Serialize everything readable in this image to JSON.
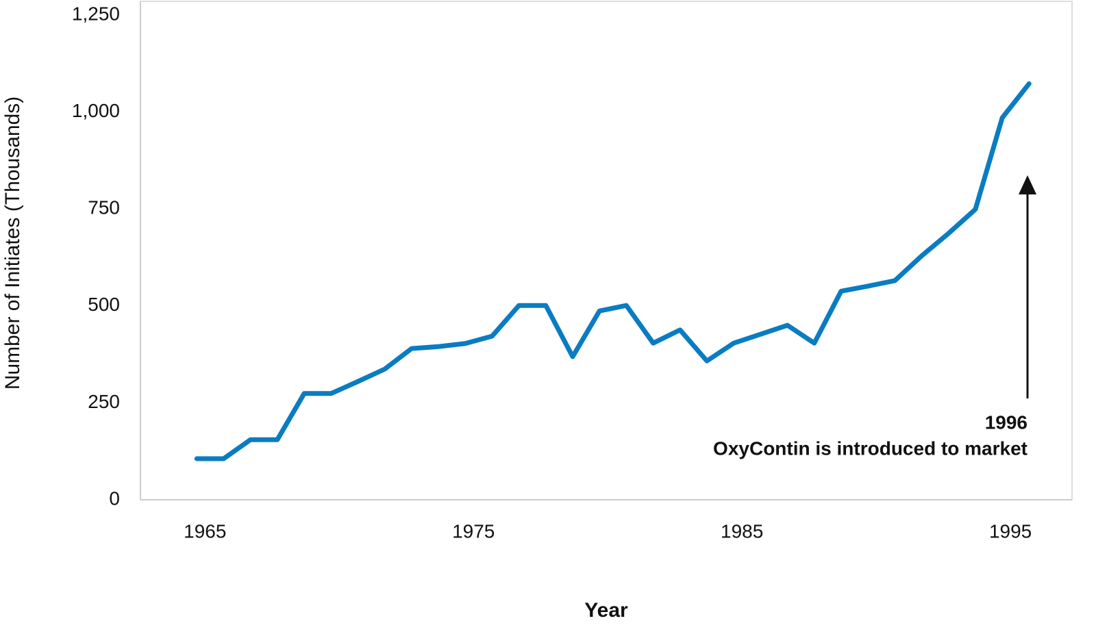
{
  "chart_data": {
    "type": "line",
    "x_label": "Year",
    "y_label": "Number of Initiates (Thousands)",
    "x": [
      1965,
      1966,
      1967,
      1968,
      1969,
      1970,
      1971,
      1972,
      1973,
      1974,
      1975,
      1976,
      1977,
      1978,
      1979,
      1980,
      1981,
      1982,
      1983,
      1984,
      1985,
      1986,
      1987,
      1988,
      1989,
      1990,
      1991,
      1992,
      1993,
      1994,
      1995,
      1996
    ],
    "series": [
      {
        "color": "#0a7cc1",
        "values": [
          106,
          106,
          155,
          155,
          274,
          274,
          305,
          337,
          390,
          395,
          403,
          422,
          501,
          501,
          369,
          487,
          501,
          404,
          438,
          358,
          404,
          427,
          450,
          404,
          538,
          551,
          565,
          629,
          687,
          749,
          985,
          1073
        ]
      }
    ],
    "xlim": [
      1962.9,
      1997.6
    ],
    "xticks": [
      1965,
      1975,
      1985,
      1995
    ],
    "ylim": [
      0,
      1250
    ],
    "yticks": [
      0,
      250,
      500,
      750,
      {
        "value": 1000,
        "label": "1,000"
      },
      {
        "value": 1250,
        "label": "1,250"
      }
    ],
    "annotation": {
      "year": "1996",
      "text": "OxyContin is introduced to market"
    }
  }
}
